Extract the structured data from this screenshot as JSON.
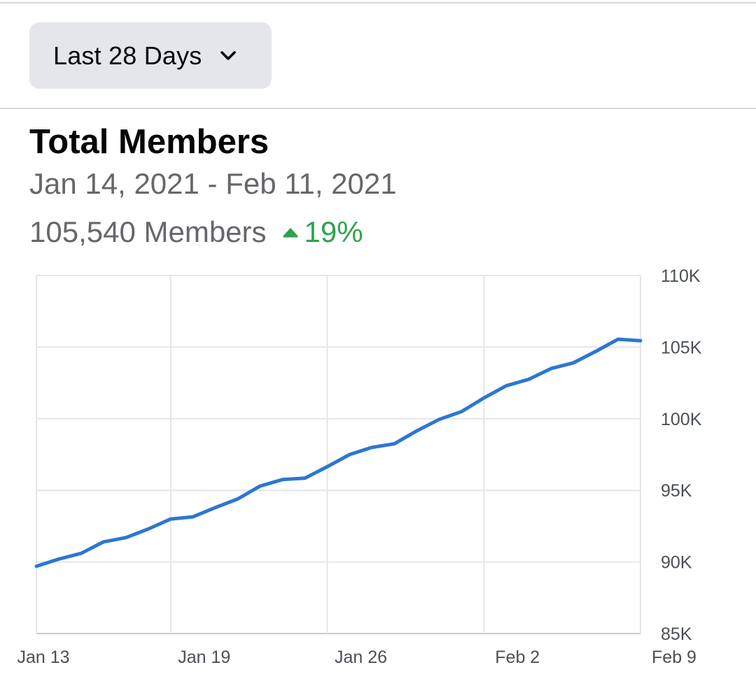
{
  "filter": {
    "range_label": "Last 28 Days",
    "icon": "chevron-down-icon"
  },
  "header": {
    "title": "Total Members",
    "date_range": "Jan 14, 2021 - Feb 11, 2021",
    "members_text": "105,540 Members",
    "change_text": "19%",
    "change_icon": "triangle-up-icon",
    "change_color": "#31a24c"
  },
  "chart_data": {
    "type": "line",
    "title": "Total Members",
    "xlabel": "",
    "ylabel": "",
    "x_tick_labels": [
      "Jan 13",
      "Jan 19",
      "Jan 26",
      "Feb 2",
      "Feb 9"
    ],
    "y_tick_labels": [
      "85K",
      "90K",
      "95K",
      "100K",
      "105K",
      "110K"
    ],
    "y_ticks": [
      85000,
      90000,
      95000,
      100000,
      105000,
      110000
    ],
    "ylim": [
      85000,
      110000
    ],
    "grid": true,
    "legend": "none",
    "line_color": "#2d77cf",
    "series": [
      {
        "x": [
          "Jan 13",
          "Jan 14",
          "Jan 15",
          "Jan 16",
          "Jan 17",
          "Jan 18",
          "Jan 19",
          "Jan 20",
          "Jan 21",
          "Jan 22",
          "Jan 23",
          "Jan 24",
          "Jan 25",
          "Jan 26",
          "Jan 27",
          "Jan 28",
          "Jan 29",
          "Jan 30",
          "Jan 31",
          "Feb 1",
          "Feb 2",
          "Feb 3",
          "Feb 4",
          "Feb 5",
          "Feb 6",
          "Feb 7",
          "Feb 8",
          "Feb 9"
        ],
        "values": [
          89700,
          90200,
          90600,
          91400,
          91700,
          92300,
          93000,
          93150,
          93800,
          94400,
          95300,
          95750,
          95850,
          96650,
          97500,
          98000,
          98250,
          99150,
          99950,
          100500,
          101450,
          102300,
          102750,
          103500,
          103900,
          104700,
          105550,
          105450
        ]
      }
    ]
  }
}
